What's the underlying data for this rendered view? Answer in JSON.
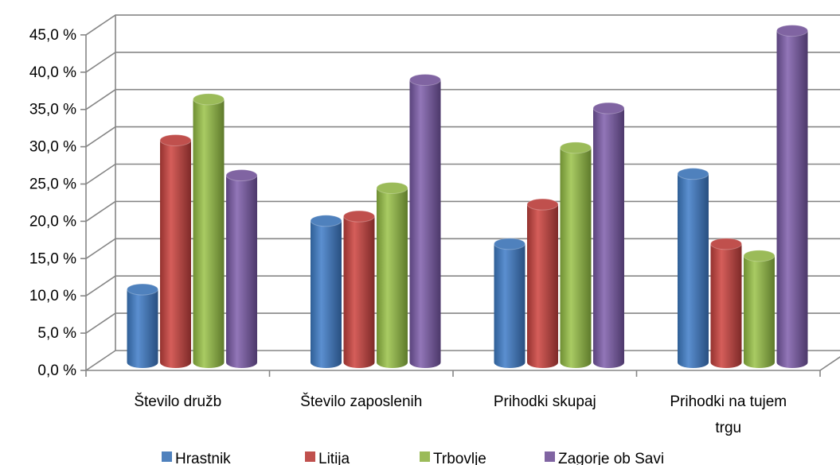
{
  "chart_data": {
    "type": "bar",
    "style": "3d-cylinder",
    "categories": [
      [
        "Število družb"
      ],
      [
        "Število zaposlenih"
      ],
      [
        "Prihodki skupaj"
      ],
      [
        "Prihodki na tujem",
        "trgu"
      ]
    ],
    "series": [
      {
        "name": "Hrastnik",
        "color": "#4F81BD",
        "values": [
          9.8,
          19.0,
          15.9,
          25.3
        ]
      },
      {
        "name": "Litija",
        "color": "#C0504D",
        "values": [
          29.8,
          19.6,
          21.2,
          15.9
        ]
      },
      {
        "name": "Trbovlje",
        "color": "#9BBB59",
        "values": [
          35.3,
          23.4,
          28.8,
          14.3
        ]
      },
      {
        "name": "Zagorje ob Savi",
        "color": "#8064A2",
        "values": [
          25.1,
          37.9,
          34.1,
          44.5
        ]
      }
    ],
    "ylim": [
      0,
      45
    ],
    "ytick_step": 5,
    "ytick_labels": [
      "0,0 %",
      "5,0 %",
      "10,0 %",
      "15,0 %",
      "20,0 %",
      "25,0 %",
      "30,0 %",
      "35,0 %",
      "40,0 %",
      "45,0 %"
    ],
    "grid": true,
    "legend_position": "bottom"
  }
}
